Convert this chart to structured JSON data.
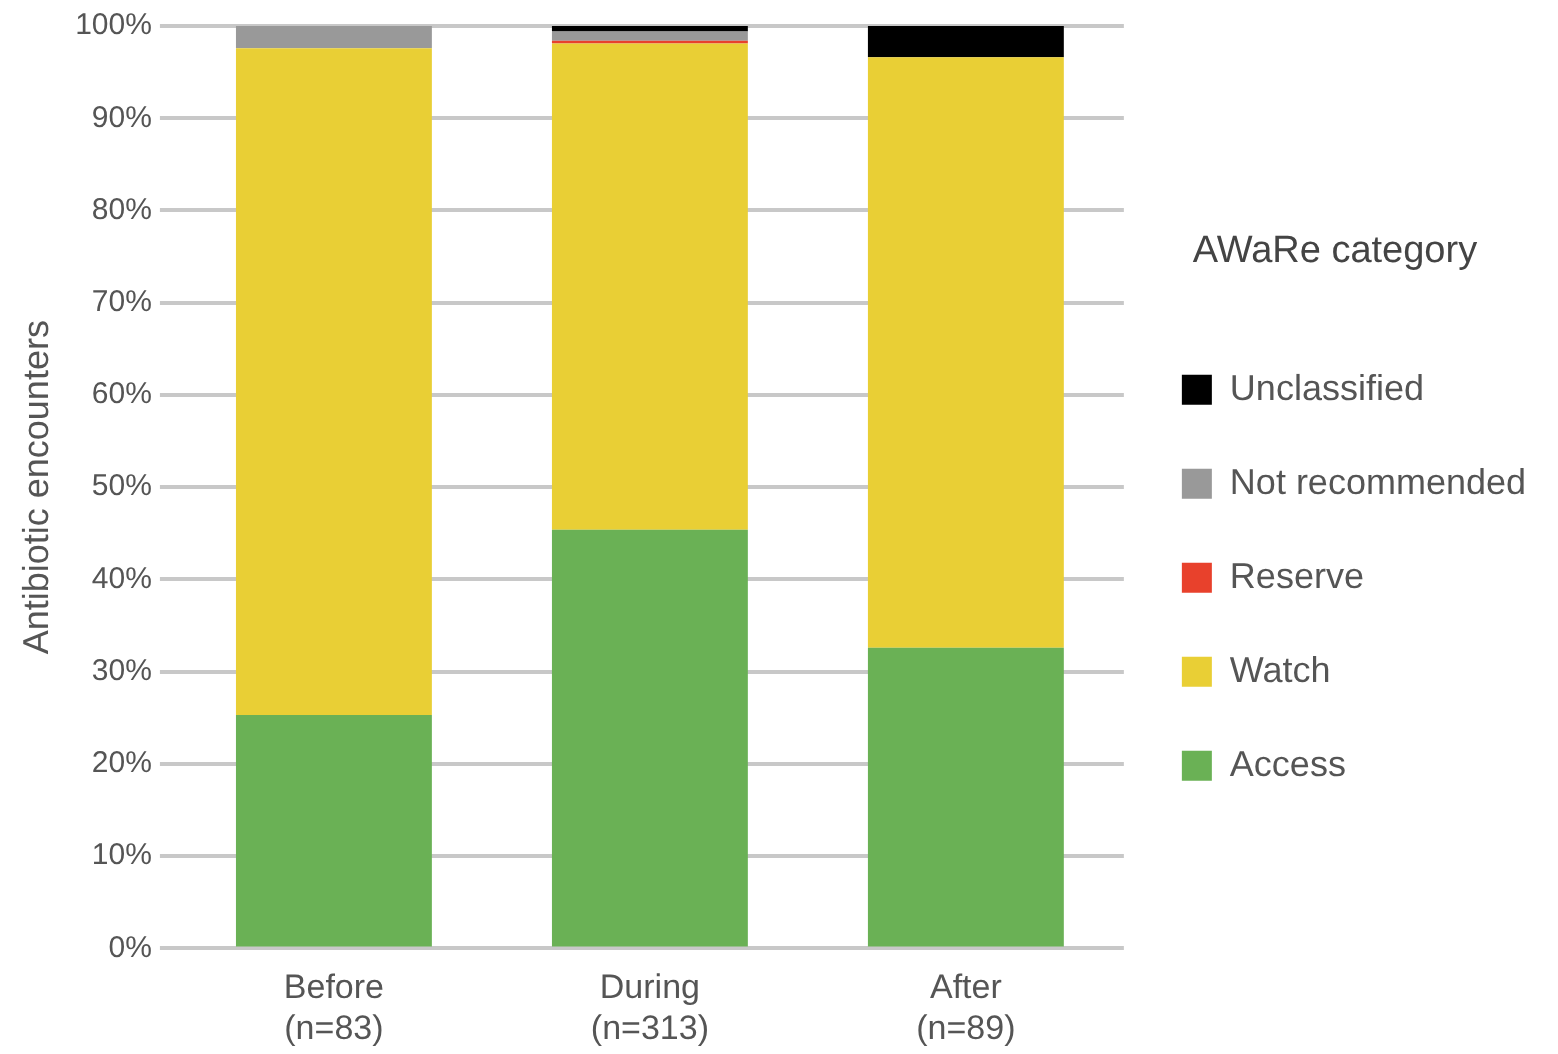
{
  "chart_data": {
    "type": "bar",
    "stacked": true,
    "ylabel": "Antibiotic encounters",
    "legend_title": "AWaRe category",
    "categories": [
      "Before\n(n=83)",
      "During\n(n=313)",
      "After\n(n=89)"
    ],
    "series": [
      {
        "name": "Access",
        "color": "#6ab155",
        "values": [
          25.3,
          45.4,
          32.6
        ]
      },
      {
        "name": "Watch",
        "color": "#e9cf35",
        "values": [
          72.3,
          52.7,
          64.0
        ]
      },
      {
        "name": "Reserve",
        "color": "#e8412c",
        "values": [
          0,
          0.3,
          0
        ]
      },
      {
        "name": "Not recommended",
        "color": "#999999",
        "values": [
          2.4,
          1.0,
          0
        ]
      },
      {
        "name": "Unclassified",
        "color": "#000000",
        "values": [
          0,
          0.6,
          3.4
        ]
      }
    ],
    "ylim": [
      0,
      100
    ],
    "yticks": [
      {
        "value": 0,
        "label": "0%"
      },
      {
        "value": 10,
        "label": "10%"
      },
      {
        "value": 20,
        "label": "20%"
      },
      {
        "value": 30,
        "label": "30%"
      },
      {
        "value": 40,
        "label": "40%"
      },
      {
        "value": 50,
        "label": "50%"
      },
      {
        "value": 60,
        "label": "60%"
      },
      {
        "value": 70,
        "label": "70%"
      },
      {
        "value": 80,
        "label": "80%"
      },
      {
        "value": 90,
        "label": "90%"
      },
      {
        "value": 100,
        "label": "100%"
      }
    ],
    "grid": "y",
    "legend": "right"
  }
}
